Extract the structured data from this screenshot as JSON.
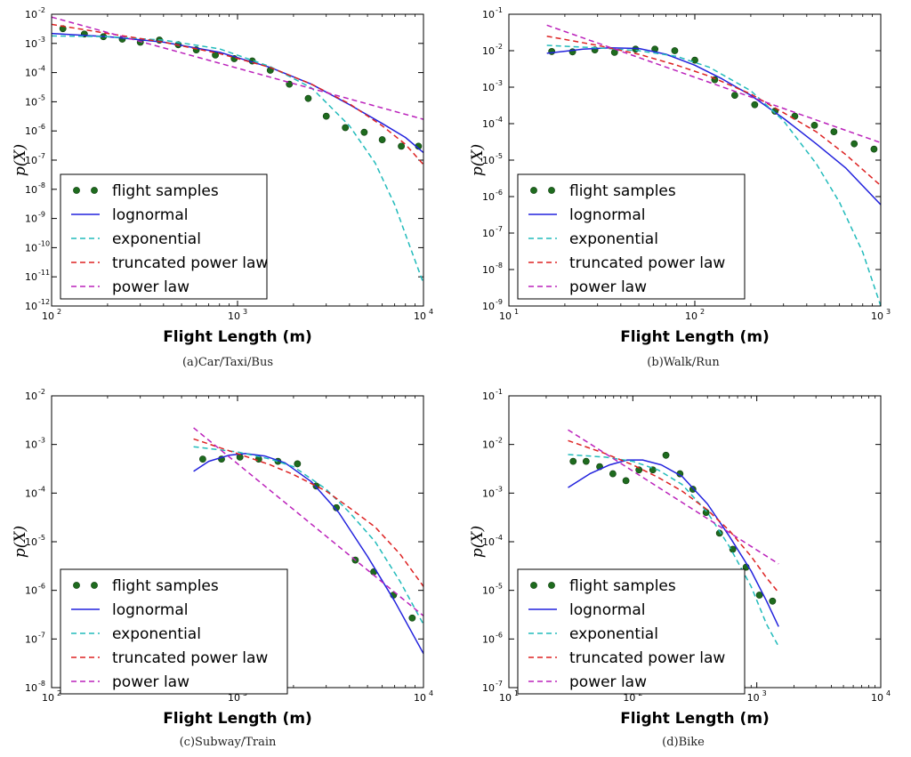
{
  "colors": {
    "samples": "#1e6b1e",
    "lognormal": "#2222dd",
    "exponential": "#22bbbb",
    "truncated": "#dd2222",
    "power": "#bb22bb"
  },
  "chart_data": [
    {
      "type": "line",
      "caption": "(a)Car/Taxi/Bus",
      "xlabel": "Flight Length (m)",
      "ylabel": "p(X)",
      "xscale": "log",
      "yscale": "log",
      "xlim": [
        100,
        10000
      ],
      "ylim": [
        1e-12,
        0.01
      ],
      "xticks": [
        {
          "v": 100,
          "m": 2
        },
        {
          "v": 1000,
          "m": 3
        },
        {
          "v": 10000,
          "m": 4
        }
      ],
      "yticks": [
        {
          "v": 1e-12,
          "m": -12
        },
        {
          "v": 1e-11,
          "m": -11
        },
        {
          "v": 1e-10,
          "m": -10
        },
        {
          "v": 1e-09,
          "m": -9
        },
        {
          "v": 1e-08,
          "m": -8
        },
        {
          "v": 1e-07,
          "m": -7
        },
        {
          "v": 1e-06,
          "m": -6
        },
        {
          "v": 1e-05,
          "m": -5
        },
        {
          "v": 0.0001,
          "m": -4
        },
        {
          "v": 0.001,
          "m": -3
        },
        {
          "v": 0.01,
          "m": -2
        }
      ],
      "legend_position": "lower-left",
      "legend": [
        "flight samples",
        "lognormal",
        "exponential",
        "truncated power law",
        "power law"
      ],
      "series": [
        {
          "name": "flight samples",
          "kind": "points",
          "x": [
            115,
            150,
            190,
            240,
            300,
            380,
            480,
            600,
            760,
            960,
            1200,
            1500,
            1900,
            2400,
            3000,
            3800,
            4800,
            6000,
            7600,
            9400
          ],
          "y": [
            0.0032,
            0.0021,
            0.0017,
            0.0014,
            0.0011,
            0.0013,
            0.0009,
            0.0006,
            0.0004,
            0.0003,
            0.00025,
            0.00012,
            4e-05,
            1.3e-05,
            3.2e-06,
            1.3e-06,
            9e-07,
            5e-07,
            3e-07,
            3e-07
          ]
        },
        {
          "name": "lognormal",
          "kind": "line",
          "x": [
            100,
            200,
            400,
            800,
            1500,
            2500,
            4000,
            6000,
            8000,
            10000
          ],
          "y": [
            0.0022,
            0.0017,
            0.0011,
            0.0005,
            0.00015,
            4e-05,
            8e-06,
            1.8e-06,
            6e-07,
            1.8e-07
          ]
        },
        {
          "name": "exponential",
          "kind": "dashed",
          "x": [
            100,
            200,
            400,
            800,
            1500,
            2500,
            4000,
            5500,
            7000,
            8500,
            10000
          ],
          "y": [
            0.0018,
            0.0017,
            0.0013,
            0.00065,
            0.00016,
            3e-05,
            1.5e-06,
            8e-08,
            3e-09,
            1e-10,
            6e-12
          ]
        },
        {
          "name": "truncated power law",
          "kind": "dashed",
          "x": [
            100,
            200,
            400,
            800,
            1500,
            2500,
            4000,
            6000,
            8000,
            10000
          ],
          "y": [
            0.0045,
            0.0022,
            0.0011,
            0.00045,
            0.00015,
            4e-05,
            8.5e-06,
            1.5e-06,
            3.5e-07,
            7e-08
          ]
        },
        {
          "name": "power law",
          "kind": "dashed",
          "x": [
            100,
            10000
          ],
          "y": [
            0.008,
            2.5e-06
          ]
        }
      ]
    },
    {
      "type": "line",
      "caption": "(b)Walk/Run",
      "xlabel": "Flight Length (m)",
      "ylabel": "p(X)",
      "xscale": "log",
      "yscale": "log",
      "xlim": [
        10,
        1000
      ],
      "ylim": [
        1e-09,
        0.1
      ],
      "xticks": [
        {
          "v": 10,
          "m": 1
        },
        {
          "v": 100,
          "m": 2
        },
        {
          "v": 1000,
          "m": 3
        }
      ],
      "yticks": [
        {
          "v": 1e-09,
          "m": -9
        },
        {
          "v": 1e-08,
          "m": -8
        },
        {
          "v": 1e-07,
          "m": -7
        },
        {
          "v": 1e-06,
          "m": -6
        },
        {
          "v": 1e-05,
          "m": -5
        },
        {
          "v": 0.0001,
          "m": -4
        },
        {
          "v": 0.001,
          "m": -3
        },
        {
          "v": 0.01,
          "m": -2
        },
        {
          "v": 0.1,
          "m": -1
        }
      ],
      "legend_position": "lower-left",
      "legend": [
        "flight samples",
        "lognormal",
        "exponential",
        "truncated power law",
        "power law"
      ],
      "series": [
        {
          "name": "flight samples",
          "kind": "points",
          "x": [
            17,
            22,
            29,
            37,
            48,
            61,
            78,
            100,
            128,
            164,
            210,
            270,
            345,
            440,
            560,
            720,
            920
          ],
          "y": [
            0.0095,
            0.0093,
            0.0105,
            0.009,
            0.011,
            0.011,
            0.01,
            0.0055,
            0.0016,
            0.0006,
            0.00033,
            0.00022,
            0.00016,
            9e-05,
            6e-05,
            2.8e-05,
            2e-05
          ]
        },
        {
          "name": "lognormal",
          "kind": "line",
          "x": [
            16,
            25,
            35,
            50,
            70,
            100,
            140,
            200,
            300,
            450,
            650,
            1000
          ],
          "y": [
            0.0085,
            0.011,
            0.012,
            0.0115,
            0.008,
            0.004,
            0.0017,
            0.0006,
            0.00014,
            2.8e-05,
            6e-06,
            6e-07
          ]
        },
        {
          "name": "exponential",
          "kind": "dashed",
          "x": [
            16,
            30,
            50,
            80,
            120,
            200,
            300,
            450,
            600,
            800,
            1000
          ],
          "y": [
            0.014,
            0.012,
            0.01,
            0.007,
            0.0035,
            0.0008,
            0.00012,
            8e-06,
            7e-07,
            3e-08,
            1e-09
          ]
        },
        {
          "name": "truncated power law",
          "kind": "dashed",
          "x": [
            16,
            30,
            50,
            80,
            120,
            200,
            300,
            450,
            650,
            1000
          ],
          "y": [
            0.025,
            0.014,
            0.008,
            0.004,
            0.002,
            0.00065,
            0.0002,
            6e-05,
            1.4e-05,
            2e-06
          ]
        },
        {
          "name": "power law",
          "kind": "dashed",
          "x": [
            16,
            1000
          ],
          "y": [
            0.05,
            3e-05
          ]
        }
      ]
    },
    {
      "type": "line",
      "caption": "(c)Subway/Train",
      "xlabel": "Flight Length (m)",
      "ylabel": "p(X)",
      "xscale": "log",
      "yscale": "log",
      "xlim": [
        100,
        10000
      ],
      "ylim": [
        1e-08,
        0.01
      ],
      "xticks": [
        {
          "v": 100,
          "m": 2
        },
        {
          "v": 1000,
          "m": 3
        },
        {
          "v": 10000,
          "m": 4
        }
      ],
      "yticks": [
        {
          "v": 1e-08,
          "m": -8
        },
        {
          "v": 1e-07,
          "m": -7
        },
        {
          "v": 1e-06,
          "m": -6
        },
        {
          "v": 1e-05,
          "m": -5
        },
        {
          "v": 0.0001,
          "m": -4
        },
        {
          "v": 0.001,
          "m": -3
        },
        {
          "v": 0.01,
          "m": -2
        }
      ],
      "legend_position": "lower-left",
      "legend": [
        "flight samples",
        "lognormal",
        "exponential",
        "truncated power law",
        "power law"
      ],
      "series": [
        {
          "name": "flight samples",
          "kind": "points",
          "x": [
            650,
            820,
            1030,
            1300,
            1650,
            2100,
            2650,
            3400,
            4300,
            5400,
            6900,
            8700
          ],
          "y": [
            0.0005,
            0.0005,
            0.00055,
            0.0005,
            0.00045,
            0.0004,
            0.00014,
            5e-05,
            4.2e-06,
            2.4e-06,
            8e-07,
            2.7e-07
          ]
        },
        {
          "name": "lognormal",
          "kind": "line",
          "x": [
            580,
            700,
            900,
            1100,
            1400,
            1800,
            2500,
            3500,
            5000,
            7000,
            10000
          ],
          "y": [
            0.00028,
            0.00045,
            0.0006,
            0.00065,
            0.00058,
            0.00042,
            0.00017,
            4e-05,
            5e-06,
            6e-07,
            5e-08
          ]
        },
        {
          "name": "exponential",
          "kind": "dashed",
          "x": [
            580,
            1000,
            1500,
            2000,
            3000,
            4000,
            5500,
            7500,
            10000
          ],
          "y": [
            0.0009,
            0.0007,
            0.0005,
            0.00035,
            0.00012,
            4e-05,
            1e-05,
            1.5e-06,
            2e-07
          ]
        },
        {
          "name": "truncated power law",
          "kind": "dashed",
          "x": [
            580,
            1000,
            1500,
            2000,
            3000,
            4000,
            5500,
            7500,
            10000
          ],
          "y": [
            0.0013,
            0.00065,
            0.00038,
            0.00024,
            0.00011,
            5e-05,
            2e-05,
            5.5e-06,
            1.2e-06
          ]
        },
        {
          "name": "power law",
          "kind": "dashed",
          "x": [
            580,
            10000
          ],
          "y": [
            0.0022,
            3e-07
          ]
        }
      ]
    },
    {
      "type": "line",
      "caption": "(d)Bike",
      "xlabel": "Flight Length (m)",
      "ylabel": "p(X)",
      "xscale": "log",
      "yscale": "log",
      "xlim": [
        10,
        10000
      ],
      "ylim": [
        1e-07,
        0.1
      ],
      "xticks": [
        {
          "v": 10,
          "m": 1
        },
        {
          "v": 100,
          "m": 2
        },
        {
          "v": 1000,
          "m": 3
        },
        {
          "v": 10000,
          "m": 4
        }
      ],
      "yticks": [
        {
          "v": 1e-07,
          "m": -7
        },
        {
          "v": 1e-06,
          "m": -6
        },
        {
          "v": 1e-05,
          "m": -5
        },
        {
          "v": 0.0001,
          "m": -4
        },
        {
          "v": 0.001,
          "m": -3
        },
        {
          "v": 0.01,
          "m": -2
        },
        {
          "v": 0.1,
          "m": -1
        }
      ],
      "legend_position": "lower-left",
      "legend": [
        "flight samples",
        "lognormal",
        "exponential",
        "truncated power law",
        "power law"
      ],
      "series": [
        {
          "name": "flight samples",
          "kind": "points",
          "x": [
            33,
            42,
            54,
            69,
            88,
            112,
            145,
            185,
            240,
            305,
            390,
            500,
            640,
            820,
            1050,
            1340
          ],
          "y": [
            0.0045,
            0.0045,
            0.0035,
            0.0025,
            0.0018,
            0.003,
            0.003,
            0.006,
            0.0025,
            0.0012,
            0.0004,
            0.00015,
            7e-05,
            3e-05,
            8e-06,
            6e-06
          ]
        },
        {
          "name": "lognormal",
          "kind": "line",
          "x": [
            30,
            45,
            65,
            90,
            120,
            170,
            250,
            400,
            600,
            900,
            1200,
            1500
          ],
          "y": [
            0.0013,
            0.0025,
            0.0038,
            0.0048,
            0.0048,
            0.0038,
            0.0022,
            0.0006,
            0.00013,
            2.5e-05,
            6e-06,
            1.8e-06
          ]
        },
        {
          "name": "exponential",
          "kind": "dashed",
          "x": [
            30,
            60,
            100,
            160,
            250,
            400,
            600,
            900,
            1200,
            1500
          ],
          "y": [
            0.0062,
            0.0055,
            0.0045,
            0.003,
            0.0015,
            0.0004,
            8e-05,
            1.2e-05,
            2e-06,
            7e-07
          ]
        },
        {
          "name": "truncated power law",
          "kind": "dashed",
          "x": [
            30,
            60,
            100,
            160,
            250,
            400,
            600,
            900,
            1200,
            1500
          ],
          "y": [
            0.012,
            0.0065,
            0.0038,
            0.0021,
            0.0011,
            0.00045,
            0.00017,
            5e-05,
            1.8e-05,
            9e-06
          ]
        },
        {
          "name": "power law",
          "kind": "dashed",
          "x": [
            30,
            1500
          ],
          "y": [
            0.02,
            3.5e-05
          ]
        }
      ]
    }
  ]
}
